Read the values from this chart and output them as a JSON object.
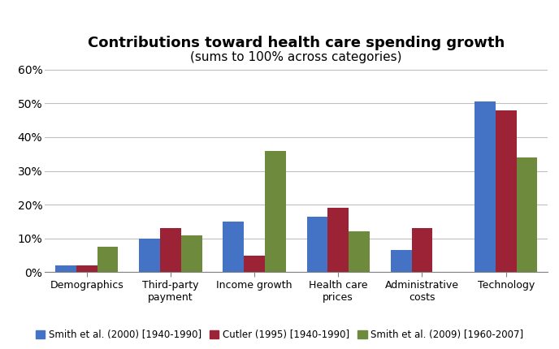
{
  "title_line1": "Contributions toward health care spending growth",
  "title_line2": "(sums to 100% across categories)",
  "categories": [
    "Demographics",
    "Third-party\npayment",
    "Income growth",
    "Health care\nprices",
    "Administrative\ncosts",
    "Technology"
  ],
  "series": [
    {
      "label": "Smith et al. (2000) [1940-1990]",
      "color": "#4472C4",
      "values": [
        0.02,
        0.1,
        0.15,
        0.165,
        0.065,
        0.505
      ]
    },
    {
      "label": "Cutler (1995) [1940-1990]",
      "color": "#9B2335",
      "values": [
        0.02,
        0.13,
        0.05,
        0.19,
        0.13,
        0.48
      ]
    },
    {
      "label": "Smith et al. (2009) [1960-2007]",
      "color": "#6E8B3D",
      "values": [
        0.075,
        0.11,
        0.36,
        0.12,
        0.0,
        0.34
      ]
    }
  ],
  "ylim": [
    0,
    0.62
  ],
  "yticks": [
    0.0,
    0.1,
    0.2,
    0.3,
    0.4,
    0.5,
    0.6
  ],
  "ytick_labels": [
    "0%",
    "10%",
    "20%",
    "30%",
    "40%",
    "50%",
    "60%"
  ],
  "grid_color": "#C0C0C0",
  "bar_width": 0.25,
  "title_fontsize": 13,
  "subtitle_fontsize": 11
}
